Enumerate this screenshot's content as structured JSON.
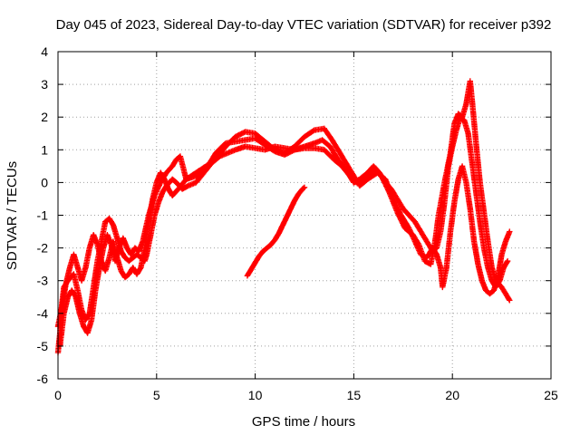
{
  "chart_data": {
    "type": "scatter",
    "title": "Day 045 of 2023, Sidereal Day-to-day VTEC variation (SDTVAR) for receiver p392",
    "xlabel": "GPS time / hours",
    "ylabel": "SDTVAR / TECUs",
    "xlim": [
      0,
      25
    ],
    "ylim": [
      -6,
      4
    ],
    "xticks": [
      "0",
      "5",
      "10",
      "15",
      "20",
      "25"
    ],
    "yticks": [
      "4",
      "3",
      "2",
      "1",
      "0",
      "-1",
      "-2",
      "-3",
      "-4",
      "-5",
      "-6"
    ],
    "grid": true,
    "marker": "+",
    "series": [
      {
        "name": "main track A",
        "color": "#ff0000",
        "points": [
          [
            0.0,
            -5.2
          ],
          [
            0.1,
            -4.6
          ],
          [
            0.2,
            -3.7
          ],
          [
            0.3,
            -3.2
          ],
          [
            0.5,
            -3.0
          ],
          [
            0.8,
            -2.8
          ],
          [
            1.0,
            -3.3
          ],
          [
            1.2,
            -3.9
          ],
          [
            1.4,
            -4.2
          ],
          [
            1.6,
            -4.0
          ],
          [
            1.8,
            -3.2
          ],
          [
            2.0,
            -2.4
          ],
          [
            2.2,
            -1.8
          ],
          [
            2.4,
            -1.2
          ],
          [
            2.6,
            -1.1
          ],
          [
            2.8,
            -1.3
          ],
          [
            3.0,
            -1.7
          ],
          [
            3.2,
            -2.1
          ],
          [
            3.4,
            -2.3
          ],
          [
            3.6,
            -2.4
          ],
          [
            3.8,
            -2.3
          ],
          [
            4.0,
            -2.2
          ],
          [
            4.2,
            -2.3
          ],
          [
            4.4,
            -2.4
          ],
          [
            4.5,
            -2.2
          ],
          [
            4.7,
            -1.6
          ],
          [
            4.9,
            -1.0
          ],
          [
            5.1,
            -0.6
          ],
          [
            5.3,
            -0.3
          ],
          [
            5.5,
            -0.1
          ],
          [
            5.8,
            0.1
          ],
          [
            6.0,
            0.0
          ],
          [
            6.3,
            -0.2
          ],
          [
            6.6,
            -0.1
          ],
          [
            7.0,
            0.0
          ],
          [
            7.4,
            0.3
          ],
          [
            7.8,
            0.6
          ],
          [
            8.2,
            0.8
          ],
          [
            8.6,
            0.9
          ],
          [
            9.0,
            1.0
          ],
          [
            9.5,
            1.1
          ],
          [
            10.0,
            1.05
          ],
          [
            10.5,
            1.0
          ],
          [
            11.0,
            1.1
          ],
          [
            11.5,
            1.05
          ],
          [
            12.0,
            1.0
          ],
          [
            12.5,
            1.05
          ],
          [
            13.0,
            1.05
          ],
          [
            13.5,
            1.0
          ],
          [
            14.0,
            0.7
          ],
          [
            14.4,
            0.5
          ],
          [
            14.8,
            0.2
          ],
          [
            15.0,
            0.0
          ],
          [
            15.3,
            0.1
          ],
          [
            15.7,
            0.3
          ],
          [
            16.0,
            0.5
          ],
          [
            16.3,
            0.3
          ],
          [
            16.6,
            0.0
          ],
          [
            16.9,
            -0.2
          ],
          [
            17.2,
            -0.5
          ],
          [
            17.5,
            -0.8
          ],
          [
            17.8,
            -1.0
          ],
          [
            18.1,
            -1.2
          ],
          [
            18.4,
            -1.5
          ],
          [
            18.7,
            -1.8
          ],
          [
            19.0,
            -2.1
          ],
          [
            19.2,
            -2.0
          ],
          [
            19.4,
            -1.5
          ],
          [
            19.6,
            -0.6
          ],
          [
            19.8,
            0.5
          ],
          [
            20.0,
            1.1
          ],
          [
            20.2,
            1.6
          ],
          [
            20.4,
            2.0
          ],
          [
            20.6,
            1.9
          ],
          [
            20.8,
            1.5
          ],
          [
            21.0,
            0.6
          ],
          [
            21.2,
            -0.3
          ],
          [
            21.4,
            -1.2
          ],
          [
            21.6,
            -2.0
          ],
          [
            21.8,
            -2.6
          ],
          [
            22.0,
            -3.0
          ],
          [
            22.2,
            -3.2
          ],
          [
            22.4,
            -3.0
          ],
          [
            22.6,
            -2.6
          ],
          [
            22.8,
            -2.4
          ]
        ]
      },
      {
        "name": "main track B",
        "color": "#ff0000",
        "points": [
          [
            0.0,
            -4.4
          ],
          [
            0.2,
            -3.8
          ],
          [
            0.4,
            -3.1
          ],
          [
            0.6,
            -2.6
          ],
          [
            0.8,
            -2.2
          ],
          [
            1.0,
            -2.6
          ],
          [
            1.2,
            -3.0
          ],
          [
            1.4,
            -2.6
          ],
          [
            1.6,
            -2.0
          ],
          [
            1.8,
            -1.6
          ],
          [
            2.0,
            -1.9
          ],
          [
            2.2,
            -2.4
          ],
          [
            2.4,
            -2.7
          ],
          [
            2.6,
            -2.3
          ],
          [
            2.8,
            -1.8
          ],
          [
            3.0,
            -2.3
          ],
          [
            3.2,
            -2.7
          ],
          [
            3.4,
            -2.9
          ],
          [
            3.6,
            -2.8
          ],
          [
            3.8,
            -2.6
          ],
          [
            4.0,
            -2.8
          ],
          [
            4.2,
            -2.6
          ],
          [
            4.4,
            -2.0
          ],
          [
            4.6,
            -1.2
          ],
          [
            4.8,
            -0.5
          ],
          [
            5.0,
            0.0
          ],
          [
            5.2,
            0.3
          ],
          [
            5.4,
            0.1
          ],
          [
            5.6,
            -0.2
          ],
          [
            5.8,
            -0.4
          ],
          [
            6.1,
            -0.2
          ],
          [
            6.5,
            0.1
          ],
          [
            7.0,
            0.3
          ],
          [
            7.5,
            0.5
          ],
          [
            8.0,
            0.7
          ],
          [
            8.5,
            1.1
          ],
          [
            9.0,
            1.4
          ],
          [
            9.5,
            1.55
          ],
          [
            10.0,
            1.5
          ],
          [
            10.5,
            1.25
          ],
          [
            11.0,
            1.0
          ],
          [
            11.5,
            0.9
          ],
          [
            12.0,
            1.1
          ],
          [
            12.5,
            1.4
          ],
          [
            13.0,
            1.6
          ],
          [
            13.5,
            1.65
          ],
          [
            13.9,
            1.3
          ],
          [
            14.3,
            0.9
          ],
          [
            14.7,
            0.5
          ],
          [
            15.0,
            0.2
          ],
          [
            15.3,
            -0.1
          ],
          [
            15.7,
            0.1
          ],
          [
            16.2,
            0.3
          ],
          [
            16.6,
            0.1
          ],
          [
            17.0,
            -0.5
          ],
          [
            17.4,
            -1.0
          ],
          [
            17.8,
            -1.4
          ],
          [
            18.1,
            -1.8
          ],
          [
            18.4,
            -2.2
          ],
          [
            18.7,
            -2.3
          ],
          [
            19.0,
            -2.0
          ],
          [
            19.2,
            -2.2
          ],
          [
            19.4,
            -2.6
          ],
          [
            19.5,
            -3.2
          ],
          [
            19.7,
            -2.6
          ],
          [
            19.9,
            -1.5
          ],
          [
            20.1,
            -0.6
          ],
          [
            20.3,
            0.1
          ],
          [
            20.5,
            0.5
          ],
          [
            20.7,
            0.0
          ],
          [
            20.9,
            -0.8
          ],
          [
            21.1,
            -1.8
          ],
          [
            21.3,
            -2.5
          ],
          [
            21.5,
            -3.0
          ],
          [
            21.7,
            -3.3
          ],
          [
            21.9,
            -3.4
          ],
          [
            22.1,
            -3.3
          ],
          [
            22.3,
            -2.9
          ],
          [
            22.5,
            -2.2
          ],
          [
            22.7,
            -1.8
          ],
          [
            22.9,
            -1.5
          ]
        ]
      },
      {
        "name": "main track C",
        "color": "#ff0000",
        "points": [
          [
            0.1,
            -5.0
          ],
          [
            0.3,
            -4.0
          ],
          [
            0.5,
            -3.5
          ],
          [
            0.7,
            -3.3
          ],
          [
            0.9,
            -3.5
          ],
          [
            1.1,
            -4.0
          ],
          [
            1.3,
            -4.4
          ],
          [
            1.5,
            -4.6
          ],
          [
            1.7,
            -4.2
          ],
          [
            1.9,
            -3.3
          ],
          [
            2.1,
            -2.6
          ],
          [
            2.3,
            -2.0
          ],
          [
            2.5,
            -1.6
          ],
          [
            2.7,
            -1.9
          ],
          [
            2.9,
            -2.4
          ],
          [
            3.1,
            -2.0
          ],
          [
            3.3,
            -1.7
          ],
          [
            3.5,
            -2.0
          ],
          [
            3.7,
            -2.2
          ],
          [
            3.9,
            -2.0
          ],
          [
            4.1,
            -2.1
          ],
          [
            4.3,
            -1.8
          ],
          [
            4.6,
            -1.0
          ],
          [
            4.9,
            -0.4
          ],
          [
            5.2,
            0.0
          ],
          [
            5.5,
            0.3
          ],
          [
            5.8,
            0.5
          ],
          [
            6.0,
            0.7
          ],
          [
            6.2,
            0.8
          ],
          [
            6.5,
            0.1
          ],
          [
            7.0,
            0.2
          ],
          [
            7.5,
            0.4
          ],
          [
            8.0,
            0.9
          ],
          [
            8.5,
            1.2
          ],
          [
            9.0,
            1.25
          ],
          [
            9.5,
            1.3
          ],
          [
            10.0,
            1.35
          ],
          [
            10.5,
            1.15
          ],
          [
            11.0,
            0.95
          ],
          [
            11.5,
            0.85
          ],
          [
            12.0,
            1.0
          ],
          [
            12.5,
            1.1
          ],
          [
            13.0,
            1.2
          ],
          [
            13.4,
            1.3
          ],
          [
            13.8,
            1.1
          ],
          [
            14.2,
            0.7
          ],
          [
            14.6,
            0.4
          ],
          [
            15.0,
            0.0
          ],
          [
            15.5,
            0.05
          ],
          [
            16.0,
            0.4
          ],
          [
            16.4,
            0.2
          ],
          [
            16.8,
            -0.3
          ],
          [
            17.2,
            -0.9
          ],
          [
            17.6,
            -1.4
          ],
          [
            18.0,
            -1.6
          ],
          [
            18.3,
            -1.9
          ],
          [
            18.6,
            -2.4
          ],
          [
            18.9,
            -2.5
          ],
          [
            19.1,
            -1.9
          ],
          [
            19.3,
            -1.0
          ],
          [
            19.6,
            0.0
          ],
          [
            19.9,
            0.9
          ],
          [
            20.1,
            1.8
          ],
          [
            20.3,
            2.1
          ],
          [
            20.5,
            2.0
          ],
          [
            20.7,
            2.4
          ],
          [
            20.9,
            3.1
          ],
          [
            21.0,
            2.5
          ],
          [
            21.2,
            1.2
          ],
          [
            21.4,
            0.0
          ],
          [
            21.6,
            -0.9
          ],
          [
            21.8,
            -1.8
          ],
          [
            22.0,
            -2.6
          ],
          [
            22.2,
            -3.0
          ],
          [
            22.5,
            -3.2
          ],
          [
            22.8,
            -3.5
          ],
          [
            22.9,
            -3.6
          ]
        ]
      },
      {
        "name": "isolated segment",
        "color": "#ff0000",
        "points": [
          [
            9.6,
            -2.85
          ],
          [
            9.8,
            -2.65
          ],
          [
            10.0,
            -2.45
          ],
          [
            10.2,
            -2.25
          ],
          [
            10.4,
            -2.1
          ],
          [
            10.6,
            -2.0
          ],
          [
            10.8,
            -1.9
          ],
          [
            11.0,
            -1.75
          ],
          [
            11.2,
            -1.55
          ],
          [
            11.4,
            -1.3
          ],
          [
            11.6,
            -1.05
          ],
          [
            11.8,
            -0.8
          ],
          [
            12.0,
            -0.55
          ],
          [
            12.2,
            -0.35
          ],
          [
            12.4,
            -0.2
          ],
          [
            12.5,
            -0.15
          ]
        ]
      }
    ]
  }
}
